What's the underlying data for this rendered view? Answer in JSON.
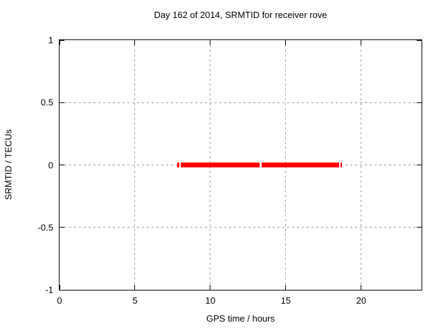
{
  "chart_data": {
    "type": "line",
    "title": "Day 162 of 2014, SRMTID for receiver rove",
    "xlabel": "GPS time / hours",
    "ylabel": "SRMTID / TECUs",
    "xlim": [
      0,
      24
    ],
    "ylim": [
      -1,
      1
    ],
    "xticks": [
      {
        "value": 0,
        "label": "0"
      },
      {
        "value": 5,
        "label": "5"
      },
      {
        "value": 10,
        "label": "10"
      },
      {
        "value": 15,
        "label": "15"
      },
      {
        "value": 20,
        "label": "20"
      }
    ],
    "yticks": [
      {
        "value": 1,
        "label": "1"
      },
      {
        "value": 0.5,
        "label": "0.5"
      },
      {
        "value": 0,
        "label": "0"
      },
      {
        "value": -0.5,
        "label": "-0.5"
      },
      {
        "value": -1,
        "label": "-1"
      }
    ],
    "grid": true,
    "legend_position": "none",
    "series": [
      {
        "name": "SRMTID",
        "color": "#ff0000",
        "y_value": 0,
        "x_segments": [
          [
            7.8,
            7.94
          ],
          [
            8.02,
            13.27
          ],
          [
            13.41,
            18.52
          ],
          [
            18.61,
            18.74
          ]
        ]
      }
    ]
  },
  "colors": {
    "background": "#ffffff",
    "axis": "#000000",
    "grid": "#9a9a9a",
    "series_red": "#ff0000"
  }
}
